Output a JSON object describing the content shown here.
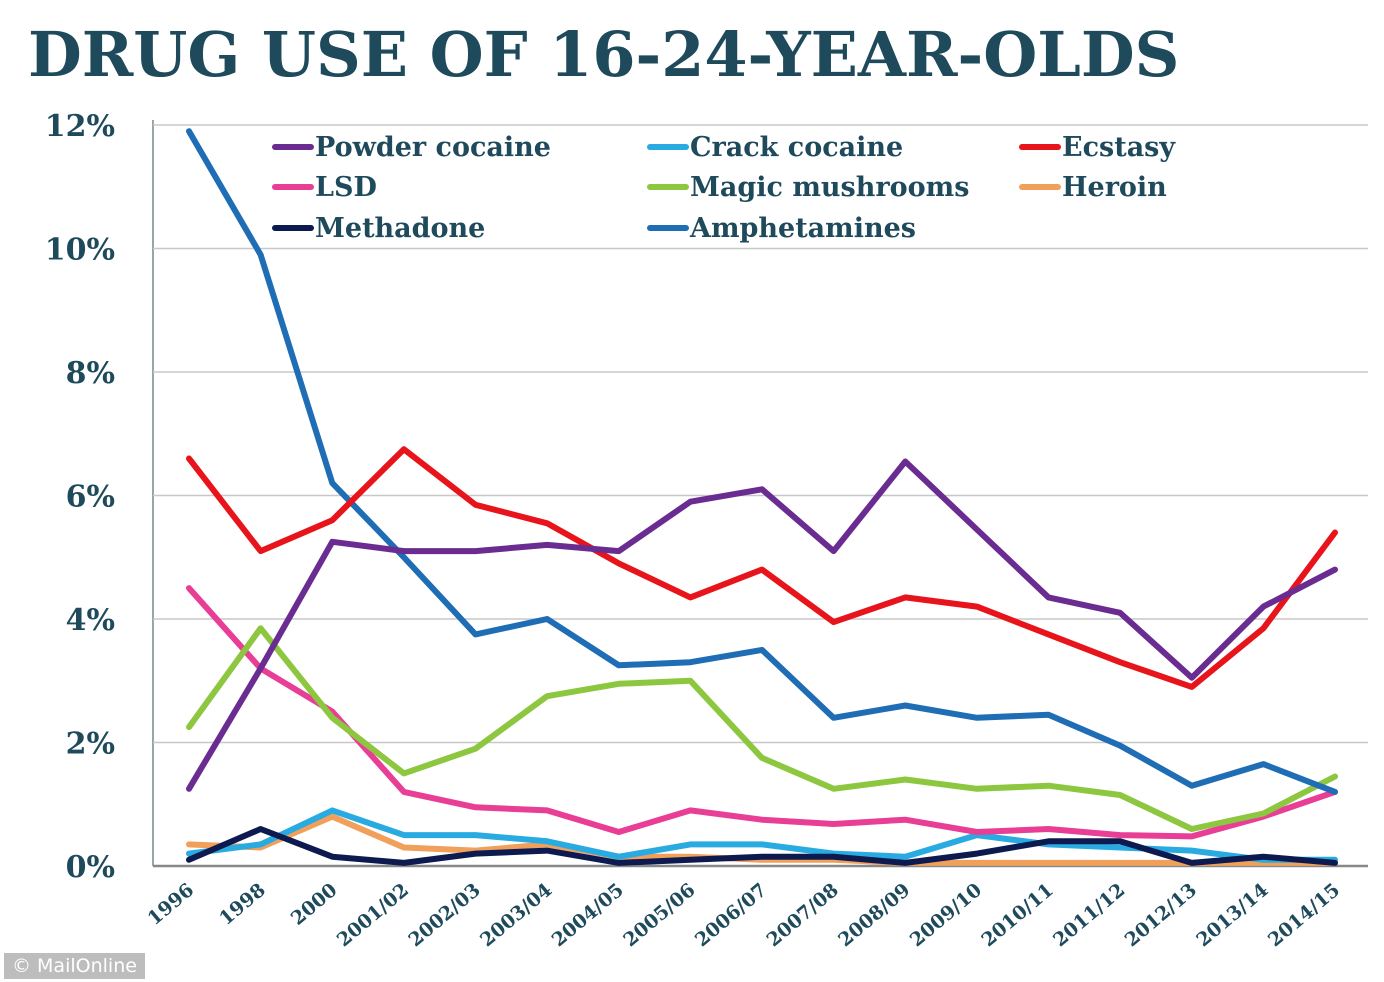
{
  "chart_data": {
    "type": "line",
    "title": "DRUG USE OF 16-24-YEAR-OLDS",
    "xlabel": "",
    "ylabel": "",
    "ylim": [
      0,
      12
    ],
    "yticks": [
      "0%",
      "2%",
      "4%",
      "6%",
      "8%",
      "10%",
      "12%"
    ],
    "ytick_values": [
      0,
      2,
      4,
      6,
      8,
      10,
      12
    ],
    "grid": true,
    "legend_position": "top",
    "categories": [
      "1996",
      "1998",
      "2000",
      "2001/02",
      "2002/03",
      "2003/04",
      "2004/05",
      "2005/06",
      "2006/07",
      "2007/08",
      "2008/09",
      "2009/10",
      "2010/11",
      "2011/12",
      "2012/13",
      "2013/14",
      "2014/15"
    ],
    "series": [
      {
        "name": "Powder cocaine",
        "color": "#6a2c91",
        "values": [
          1.25,
          3.2,
          5.25,
          5.1,
          5.1,
          5.2,
          5.1,
          5.9,
          6.1,
          5.1,
          6.55,
          5.45,
          4.35,
          4.1,
          3.05,
          4.2,
          4.8
        ]
      },
      {
        "name": "Crack cocaine",
        "color": "#29abe2",
        "values": [
          0.2,
          0.35,
          0.9,
          0.5,
          0.5,
          0.4,
          0.15,
          0.35,
          0.35,
          0.2,
          0.15,
          0.5,
          0.35,
          0.3,
          0.25,
          0.1,
          0.1
        ]
      },
      {
        "name": "Ecstasy",
        "color": "#e8141b",
        "values": [
          6.6,
          5.1,
          5.6,
          6.75,
          5.85,
          5.55,
          4.9,
          4.35,
          4.8,
          3.95,
          4.35,
          4.2,
          3.75,
          3.3,
          2.9,
          3.85,
          5.4
        ]
      },
      {
        "name": "LSD",
        "color": "#e83e96",
        "values": [
          4.5,
          3.2,
          2.5,
          1.2,
          0.95,
          0.9,
          0.55,
          0.9,
          0.75,
          0.68,
          0.75,
          0.55,
          0.6,
          0.5,
          0.48,
          0.8,
          1.2
        ]
      },
      {
        "name": "Magic mushrooms",
        "color": "#8dc63f",
        "values": [
          2.25,
          3.85,
          2.4,
          1.5,
          1.9,
          2.75,
          2.95,
          3.0,
          1.75,
          1.25,
          1.4,
          1.25,
          1.3,
          1.15,
          0.6,
          0.85,
          1.45
        ]
      },
      {
        "name": "Heroin",
        "color": "#f0a05a",
        "values": [
          0.35,
          0.3,
          0.8,
          0.3,
          0.25,
          0.35,
          0.15,
          0.15,
          0.1,
          0.1,
          0.05,
          0.05,
          0.05,
          0.05,
          0.05,
          0.05,
          0.05
        ]
      },
      {
        "name": "Methadone",
        "color": "#0d1a4f",
        "values": [
          0.1,
          0.6,
          0.15,
          0.05,
          0.2,
          0.25,
          0.05,
          0.1,
          0.15,
          0.15,
          0.05,
          0.2,
          0.4,
          0.4,
          0.05,
          0.15,
          0.05
        ]
      },
      {
        "name": "Amphetamines",
        "color": "#1f6db5",
        "values": [
          11.9,
          9.9,
          6.2,
          5.0,
          3.75,
          4.0,
          3.25,
          3.3,
          3.5,
          2.4,
          2.6,
          2.4,
          2.45,
          1.95,
          1.3,
          1.65,
          1.2
        ]
      }
    ]
  },
  "credit": "© MailOnline"
}
